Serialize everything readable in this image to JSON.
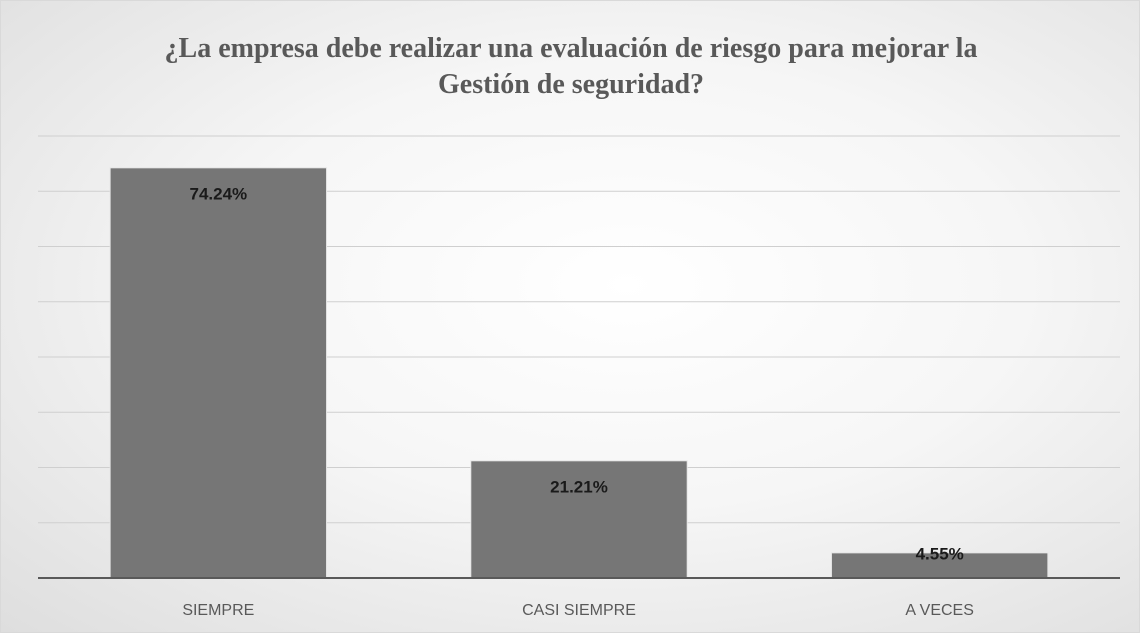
{
  "chart_data": {
    "type": "bar",
    "title": "¿La empresa debe realizar una evaluación de riesgo para mejorar la Gestión de seguridad?",
    "categories": [
      "SIEMPRE",
      "CASI SIEMPRE",
      "A VECES"
    ],
    "values": [
      74.24,
      21.21,
      4.55
    ],
    "value_labels": [
      "74.24%",
      "21.21%",
      "4.55%"
    ],
    "color": "#767676",
    "ylim": [
      0,
      80
    ],
    "yticks": [
      0,
      10,
      20,
      30,
      40,
      50,
      60,
      70,
      80
    ],
    "grid": true
  }
}
